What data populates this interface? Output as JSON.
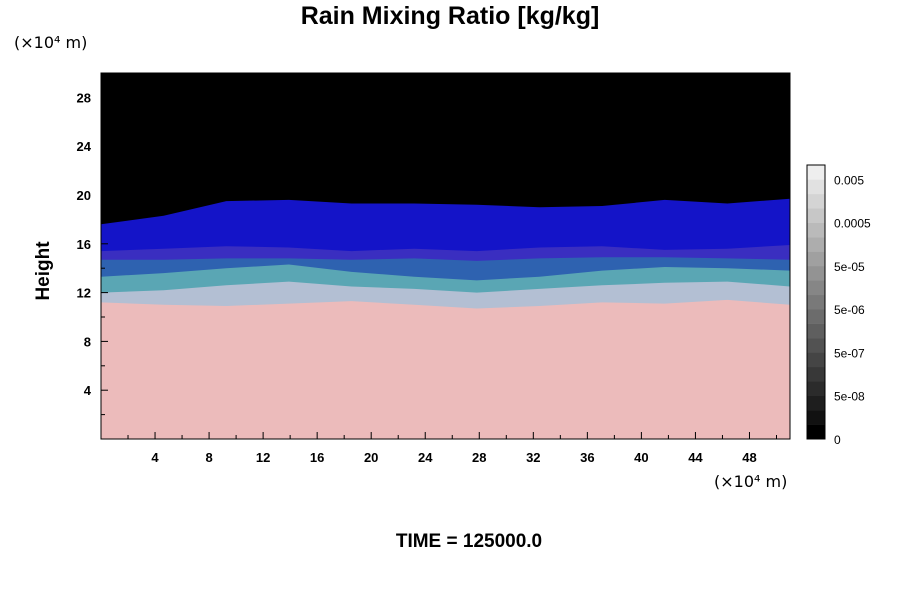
{
  "chart_data": {
    "type": "heatmap",
    "title": "Rain Mixing Ratio [kg/kg]",
    "ylabel": "Height",
    "x_unit": "(×10⁴ m)",
    "y_unit": "(×10⁴ m)",
    "xlim": [
      0,
      51
    ],
    "ylim": [
      0,
      30
    ],
    "x_ticks": [
      4,
      8,
      12,
      16,
      20,
      24,
      28,
      32,
      36,
      40,
      44,
      48
    ],
    "y_ticks": [
      4,
      8,
      12,
      16,
      20,
      24,
      28
    ],
    "layers": [
      {
        "name": "pink",
        "color": "#ecbbbb",
        "top": [
          11.2,
          11.0,
          10.9,
          11.1,
          11.3,
          11.0,
          10.7,
          10.9,
          11.2,
          11.1,
          11.4,
          11.0
        ]
      },
      {
        "name": "light-gray-blue",
        "color": "#b3bfd3",
        "top": [
          12.0,
          12.2,
          12.6,
          12.9,
          12.5,
          12.3,
          12.0,
          12.3,
          12.6,
          12.8,
          12.9,
          12.5
        ]
      },
      {
        "name": "teal",
        "color": "#5aa6b4",
        "top": [
          13.3,
          13.6,
          14.0,
          14.3,
          13.7,
          13.3,
          13.0,
          13.3,
          13.8,
          14.1,
          14.0,
          13.8
        ]
      },
      {
        "name": "mid-blue",
        "color": "#2e62b0",
        "top": [
          14.7,
          14.7,
          14.8,
          14.8,
          14.7,
          14.8,
          14.6,
          14.8,
          14.9,
          14.9,
          14.8,
          14.7
        ]
      },
      {
        "name": "purple-blue",
        "color": "#3a2ec0",
        "top": [
          15.4,
          15.6,
          15.8,
          15.7,
          15.4,
          15.6,
          15.4,
          15.7,
          15.8,
          15.5,
          15.6,
          15.9
        ]
      },
      {
        "name": "blue",
        "color": "#1414c8",
        "top": [
          17.6,
          18.3,
          19.5,
          19.6,
          19.3,
          19.3,
          19.2,
          19.0,
          19.1,
          19.6,
          19.3,
          19.7
        ]
      },
      {
        "name": "black",
        "color": "#000000",
        "top": [
          30,
          30,
          30,
          30,
          30,
          30,
          30,
          30,
          30,
          30,
          30,
          30
        ]
      }
    ],
    "colorbar": {
      "labels": [
        "0.005",
        "0.0005",
        "5e-05",
        "5e-06",
        "5e-07",
        "5e-08",
        "0"
      ],
      "colors": [
        "#000000",
        "#111111",
        "#1e1e1e",
        "#2b2b2b",
        "#383838",
        "#454545",
        "#525252",
        "#5f5f5f",
        "#6c6c6c",
        "#797979",
        "#868686",
        "#939393",
        "#a0a0a0",
        "#adadad",
        "#bababa",
        "#c7c7c7",
        "#d4d4d4",
        "#e1e1e1",
        "#eeeeee"
      ]
    },
    "time_label": "TIME = 125000.0"
  }
}
